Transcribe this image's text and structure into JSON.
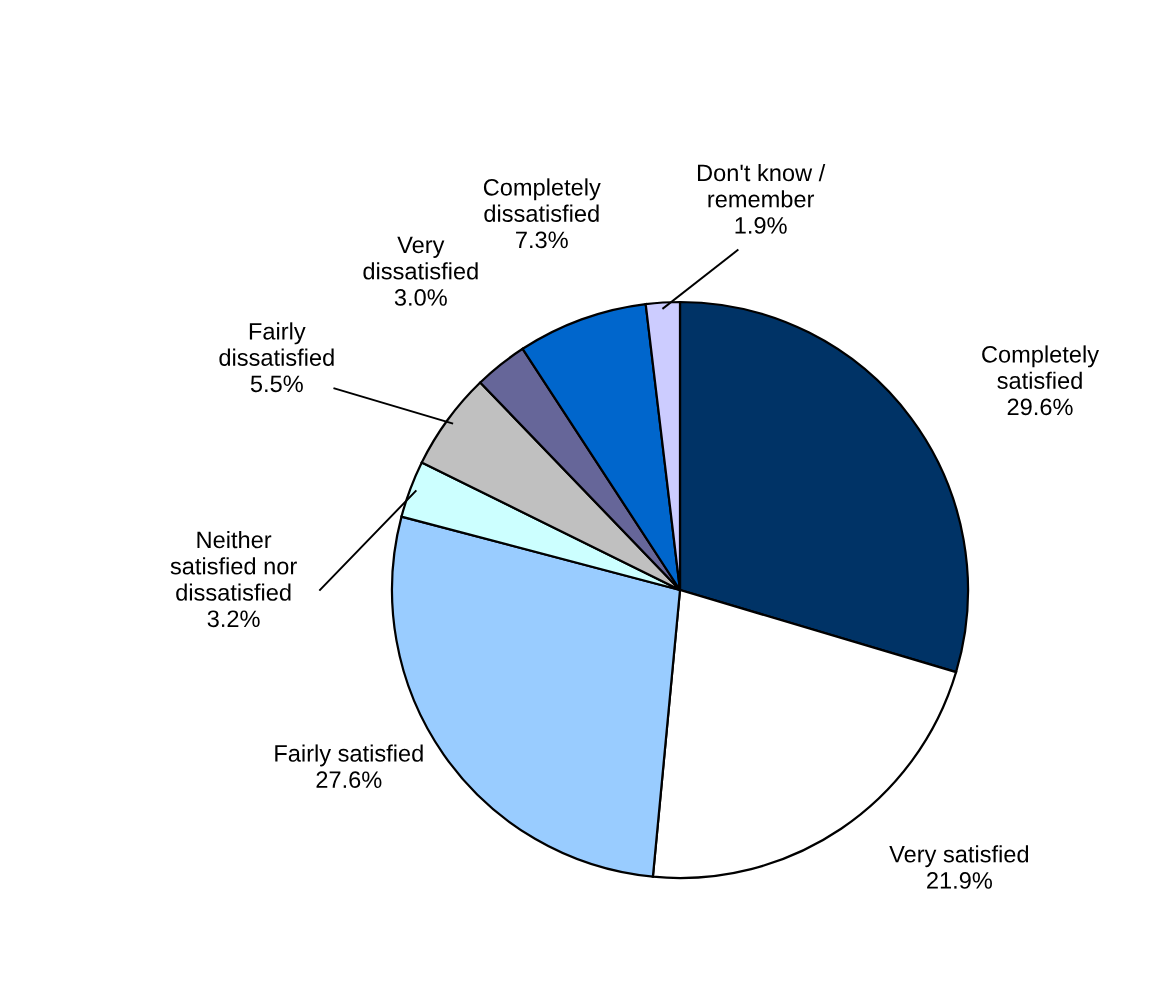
{
  "chart_data": {
    "type": "pie",
    "categories": [
      "Completely\nsatisfied",
      "Very satisfied",
      "Fairly satisfied",
      "Neither\nsatisfied nor\ndissatisfied",
      "Fairly\ndissatisfied",
      "Very\ndissatisfied",
      "Completely\ndissatisfied",
      "Don't know /\nremember"
    ],
    "values": [
      29.6,
      21.9,
      27.6,
      3.2,
      5.5,
      3.0,
      7.3,
      1.9
    ],
    "value_labels": [
      "29.6%",
      "21.9%",
      "27.6%",
      "3.2%",
      "5.5%",
      "3.0%",
      "7.3%",
      "1.9%"
    ],
    "colors": [
      "#003366",
      "#ffffff",
      "#99ccff",
      "#ccffff",
      "#c0c0c0",
      "#666699",
      "#0066cc",
      "#ccccff"
    ]
  }
}
